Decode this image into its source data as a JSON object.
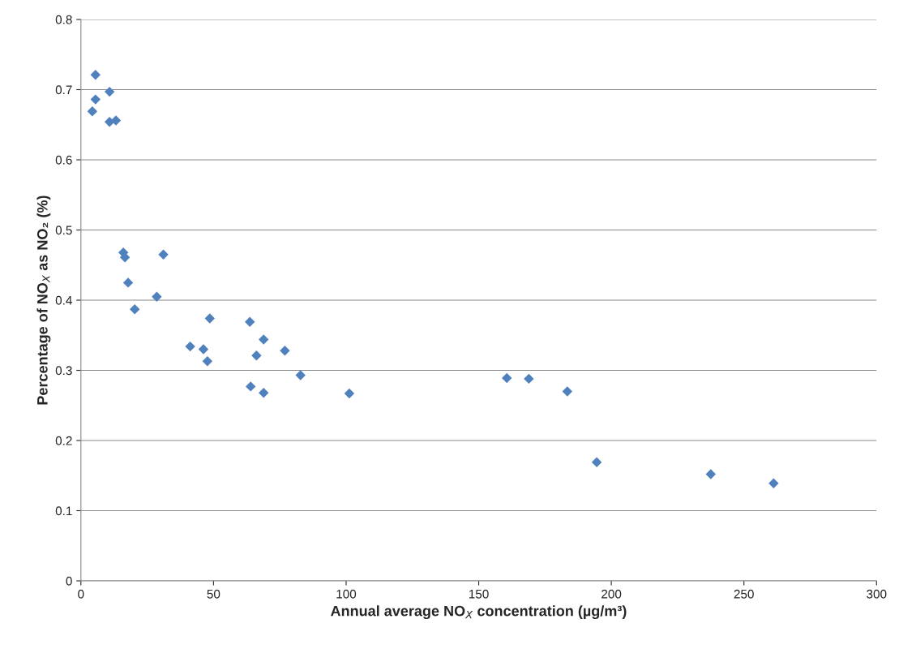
{
  "chart_data": {
    "type": "scatter",
    "xlabel": "Annual average NO$_{X}$ concentration (µg/m³)",
    "ylabel": "Percentage of NO$_{X}$ as NO₂ (%)",
    "x": [
      4.3,
      5.5,
      5.5,
      10.8,
      10.8,
      13.2,
      16.0,
      16.6,
      17.8,
      20.3,
      28.6,
      31.1,
      41.2,
      46.2,
      47.7,
      48.6,
      63.7,
      64.0,
      66.2,
      68.9,
      68.9,
      76.9,
      82.8,
      101.2,
      160.6,
      168.9,
      183.4,
      194.5,
      237.5,
      261.2
    ],
    "series": [
      {
        "color": "#4f81bd",
        "values": [
          0.669,
          0.721,
          0.686,
          0.697,
          0.654,
          0.656,
          0.468,
          0.461,
          0.425,
          0.387,
          0.405,
          0.465,
          0.334,
          0.33,
          0.313,
          0.374,
          0.369,
          0.277,
          0.321,
          0.344,
          0.268,
          0.328,
          0.293,
          0.267,
          0.289,
          0.288,
          0.27,
          0.169,
          0.152,
          0.139
        ]
      }
    ],
    "xlim": [
      0,
      300
    ],
    "xticks": [
      0,
      50,
      100,
      150,
      200,
      250,
      300
    ],
    "ylim": [
      0,
      0.8
    ],
    "yticks": [
      0,
      0.1,
      0.2,
      0.3,
      0.4,
      0.5,
      0.6,
      0.7,
      0.8
    ],
    "grid": "y",
    "marker": "diamond",
    "legend": false
  }
}
